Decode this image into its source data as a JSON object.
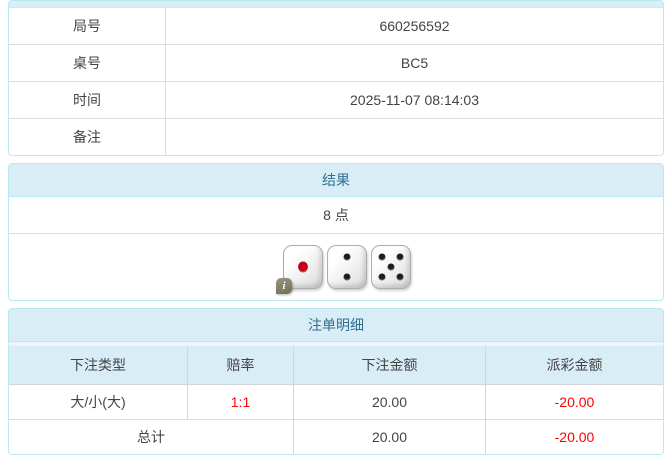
{
  "colors": {
    "heading_bg": "#d9edf7",
    "heading_text": "#31708f",
    "panel_border": "#bce8f1",
    "negative_text": "#ff0000"
  },
  "info_table": {
    "rows": [
      {
        "label": "局号",
        "value": "660256592"
      },
      {
        "label": "桌号",
        "value": "BC5"
      },
      {
        "label": "时间",
        "value": "2025-11-07 08:14:03"
      },
      {
        "label": "备注",
        "value": ""
      }
    ]
  },
  "result_panel": {
    "title": "结果",
    "points": "8 点",
    "dice": [
      1,
      2,
      5
    ],
    "info_icon_glyph": "i"
  },
  "bets_panel": {
    "title": "注单明细",
    "columns": [
      "下注类型",
      "赔率",
      "下注金额",
      "派彩金额"
    ],
    "rows": [
      {
        "type": "大/小(大)",
        "odds": "1:1",
        "bet": "20.00",
        "payout": "-20.00"
      }
    ],
    "total": {
      "label": "总计",
      "bet": "20.00",
      "payout": "-20.00"
    }
  }
}
